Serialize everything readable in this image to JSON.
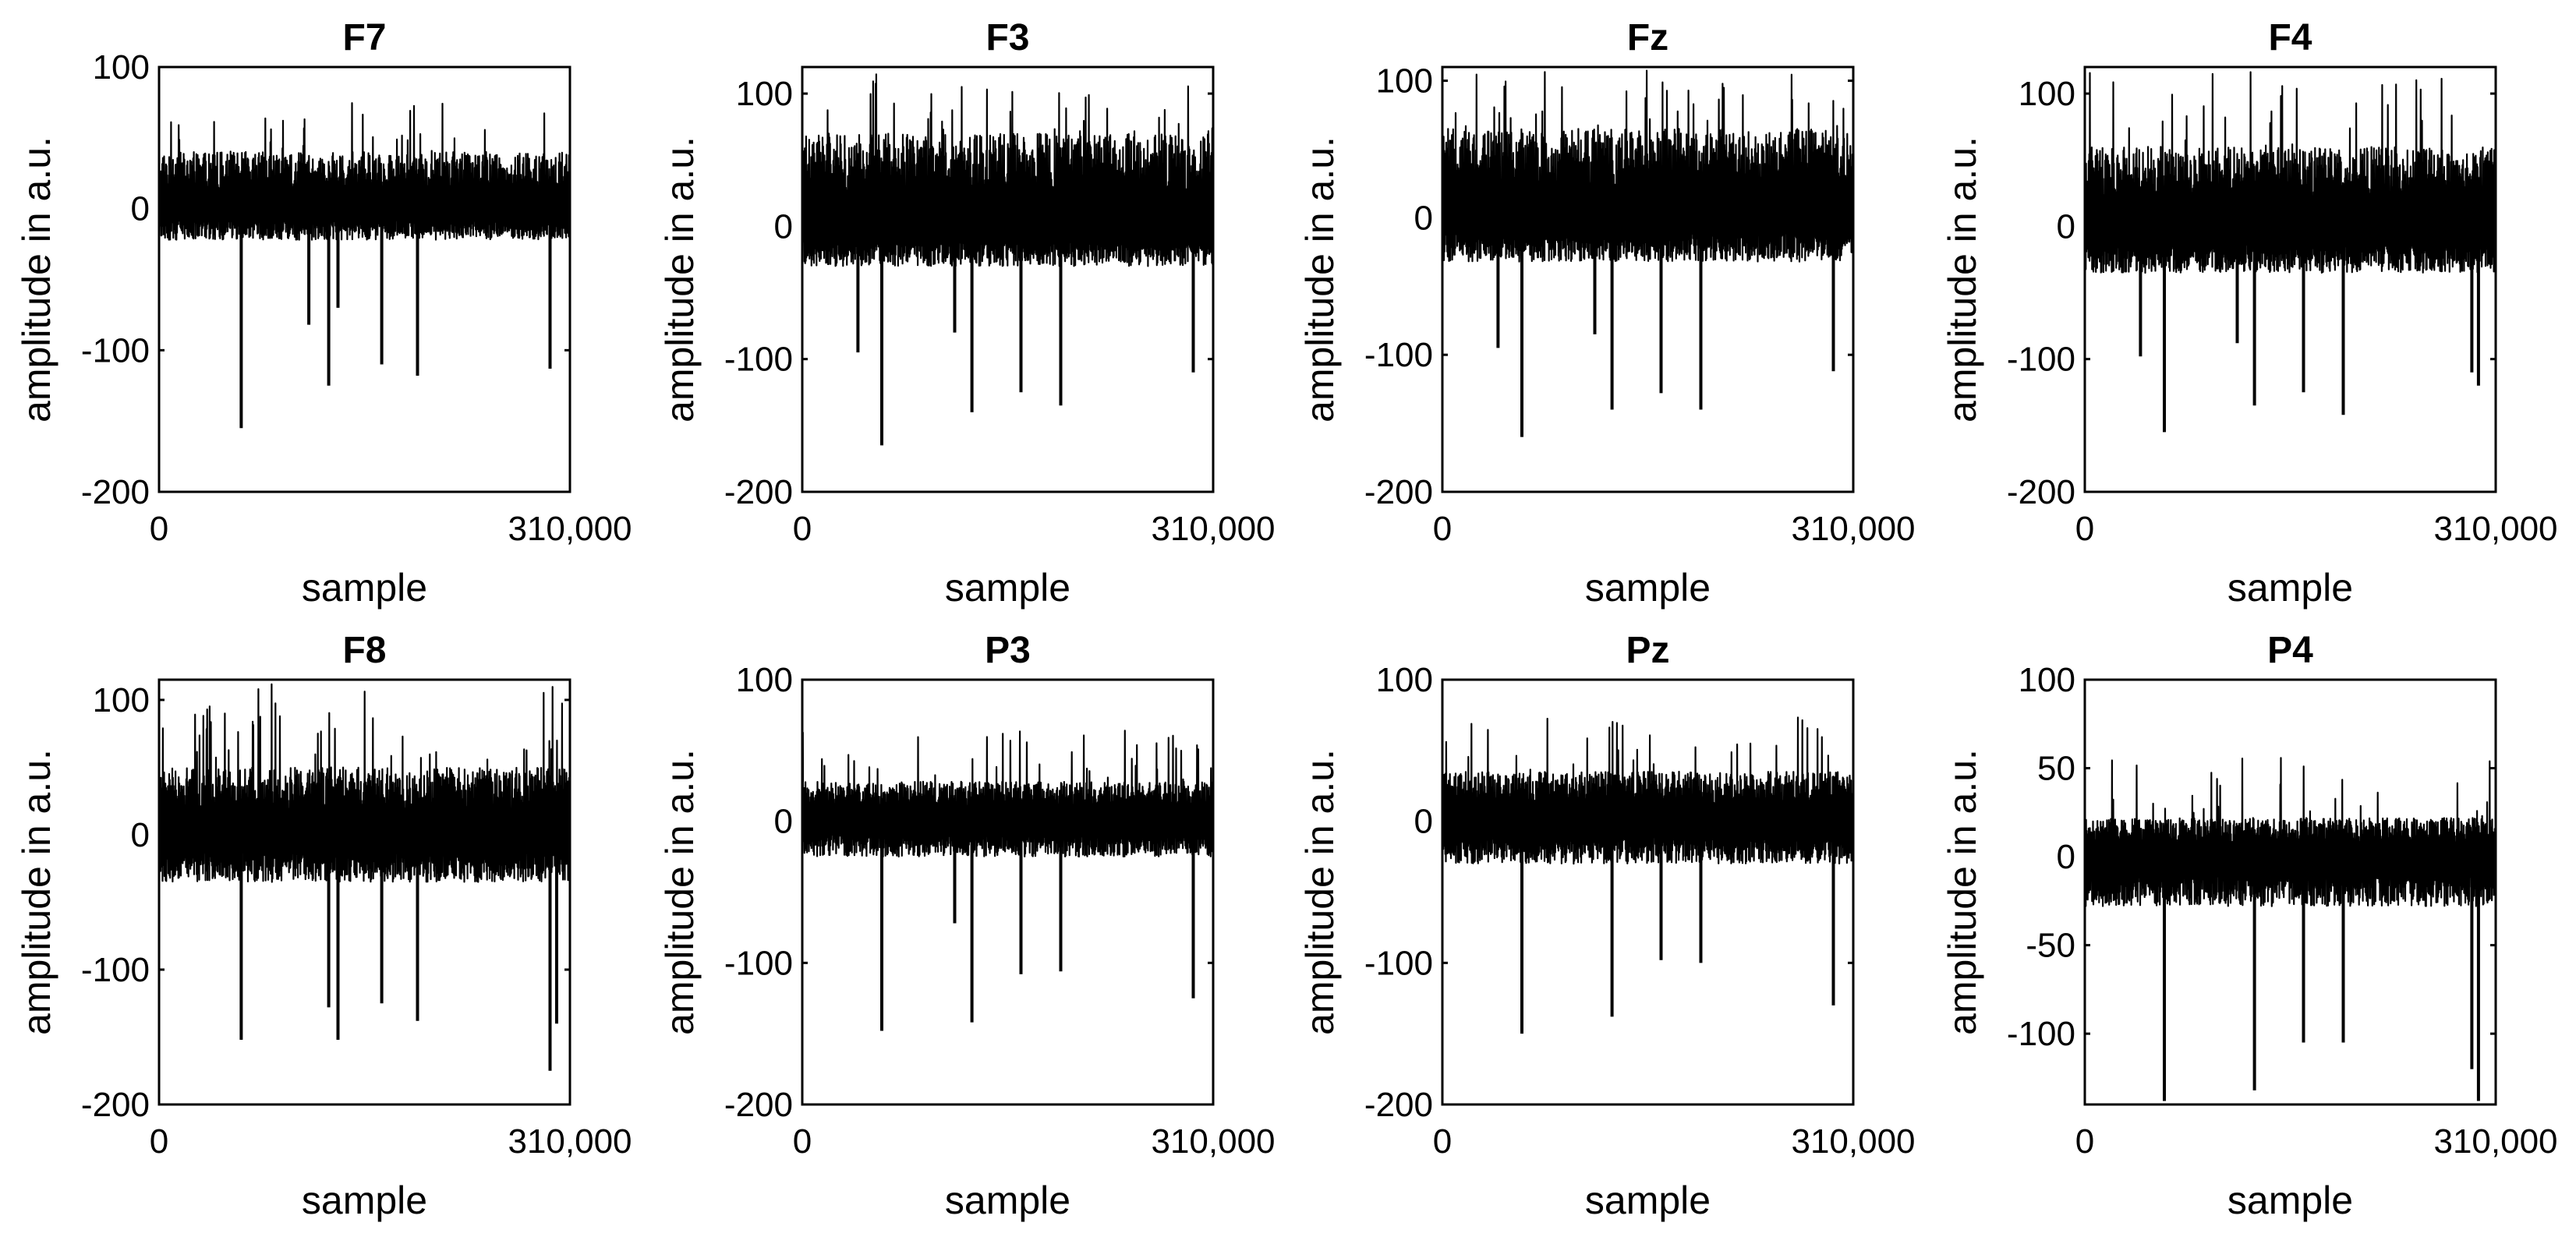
{
  "chart_data": [
    {
      "type": "line",
      "title": "F7",
      "xlabel": "sample",
      "ylabel": "amplitude in a.u.",
      "xlim": [
        0,
        310000
      ],
      "ylim": [
        -200,
        100
      ],
      "xticks": [
        0,
        310000
      ],
      "xtick_labels": [
        "0",
        "310,000"
      ],
      "yticks": [
        -200,
        -100,
        0,
        100
      ],
      "ytick_labels": [
        "-200",
        "-100",
        "0",
        "100"
      ],
      "noise": {
        "pos": 40,
        "neg": -22,
        "burst_pos": 75
      },
      "spikes": [
        {
          "x": 62000,
          "y": -155
        },
        {
          "x": 113000,
          "y": -82
        },
        {
          "x": 128000,
          "y": -125
        },
        {
          "x": 135000,
          "y": -70
        },
        {
          "x": 168000,
          "y": -110
        },
        {
          "x": 195000,
          "y": -118
        },
        {
          "x": 295000,
          "y": -113
        }
      ]
    },
    {
      "type": "line",
      "title": "F3",
      "xlabel": "sample",
      "ylabel": "amplitude in a.u.",
      "xlim": [
        0,
        310000
      ],
      "ylim": [
        -200,
        120
      ],
      "xticks": [
        0,
        310000
      ],
      "xtick_labels": [
        "0",
        "310,000"
      ],
      "yticks": [
        -200,
        -100,
        0,
        100
      ],
      "ytick_labels": [
        "-200",
        "-100",
        "0",
        "100"
      ],
      "noise": {
        "pos": 70,
        "neg": -30,
        "burst_pos": 115
      },
      "spikes": [
        {
          "x": 42000,
          "y": -95
        },
        {
          "x": 60000,
          "y": -165
        },
        {
          "x": 115000,
          "y": -80
        },
        {
          "x": 128000,
          "y": -140
        },
        {
          "x": 165000,
          "y": -125
        },
        {
          "x": 195000,
          "y": -135
        },
        {
          "x": 295000,
          "y": -110
        }
      ]
    },
    {
      "type": "line",
      "title": "Fz",
      "xlabel": "sample",
      "ylabel": "amplitude in a.u.",
      "xlim": [
        0,
        310000
      ],
      "ylim": [
        -200,
        110
      ],
      "xticks": [
        0,
        310000
      ],
      "xtick_labels": [
        "0",
        "310,000"
      ],
      "yticks": [
        -200,
        -100,
        0,
        100
      ],
      "ytick_labels": [
        "-200",
        "-100",
        "0",
        "100"
      ],
      "noise": {
        "pos": 65,
        "neg": -32,
        "burst_pos": 110
      },
      "spikes": [
        {
          "x": 42000,
          "y": -95
        },
        {
          "x": 60000,
          "y": -160
        },
        {
          "x": 115000,
          "y": -85
        },
        {
          "x": 128000,
          "y": -140
        },
        {
          "x": 165000,
          "y": -128
        },
        {
          "x": 195000,
          "y": -140
        },
        {
          "x": 295000,
          "y": -112
        }
      ]
    },
    {
      "type": "line",
      "title": "F4",
      "xlabel": "sample",
      "ylabel": "amplitude in a.u.",
      "xlim": [
        0,
        310000
      ],
      "ylim": [
        -200,
        120
      ],
      "xticks": [
        0,
        310000
      ],
      "xtick_labels": [
        "0",
        "310,000"
      ],
      "yticks": [
        -200,
        -100,
        0,
        100
      ],
      "ytick_labels": [
        "-200",
        "-100",
        "0",
        "100"
      ],
      "noise": {
        "pos": 60,
        "neg": -35,
        "burst_pos": 118
      },
      "spikes": [
        {
          "x": 42000,
          "y": -98
        },
        {
          "x": 60000,
          "y": -155
        },
        {
          "x": 115000,
          "y": -88
        },
        {
          "x": 128000,
          "y": -135
        },
        {
          "x": 165000,
          "y": -125
        },
        {
          "x": 195000,
          "y": -142
        },
        {
          "x": 292000,
          "y": -110
        },
        {
          "x": 297000,
          "y": -120
        }
      ]
    },
    {
      "type": "line",
      "title": "F8",
      "xlabel": "sample",
      "ylabel": "amplitude in a.u.",
      "xlim": [
        0,
        310000
      ],
      "ylim": [
        -200,
        115
      ],
      "xticks": [
        0,
        310000
      ],
      "xtick_labels": [
        "0",
        "310,000"
      ],
      "yticks": [
        -200,
        -100,
        0,
        100
      ],
      "ytick_labels": [
        "-200",
        "-100",
        "0",
        "100"
      ],
      "noise": {
        "pos": 50,
        "neg": -35,
        "burst_pos": 112
      },
      "spikes": [
        {
          "x": 62000,
          "y": -152
        },
        {
          "x": 128000,
          "y": -128
        },
        {
          "x": 135000,
          "y": -152
        },
        {
          "x": 168000,
          "y": -125
        },
        {
          "x": 195000,
          "y": -138
        },
        {
          "x": 295000,
          "y": -175
        },
        {
          "x": 300000,
          "y": -140
        }
      ]
    },
    {
      "type": "line",
      "title": "P3",
      "xlabel": "sample",
      "ylabel": "amplitude in a.u.",
      "xlim": [
        0,
        310000
      ],
      "ylim": [
        -200,
        100
      ],
      "xticks": [
        0,
        310000
      ],
      "xtick_labels": [
        "0",
        "310,000"
      ],
      "yticks": [
        -200,
        -100,
        0,
        100
      ],
      "ytick_labels": [
        "-200",
        "-100",
        "0",
        "100"
      ],
      "noise": {
        "pos": 28,
        "neg": -25,
        "burst_pos": 65
      },
      "spikes": [
        {
          "x": 60000,
          "y": -148
        },
        {
          "x": 115000,
          "y": -72
        },
        {
          "x": 128000,
          "y": -142
        },
        {
          "x": 165000,
          "y": -108
        },
        {
          "x": 195000,
          "y": -106
        },
        {
          "x": 295000,
          "y": -125
        }
      ]
    },
    {
      "type": "line",
      "title": "Pz",
      "xlabel": "sample",
      "ylabel": "amplitude in a.u.",
      "xlim": [
        0,
        310000
      ],
      "ylim": [
        -200,
        100
      ],
      "xticks": [
        0,
        310000
      ],
      "xtick_labels": [
        "0",
        "310,000"
      ],
      "yticks": [
        -200,
        -100,
        0,
        100
      ],
      "ytick_labels": [
        "-200",
        "-100",
        "0",
        "100"
      ],
      "noise": {
        "pos": 35,
        "neg": -30,
        "burst_pos": 74
      },
      "spikes": [
        {
          "x": 60000,
          "y": -150
        },
        {
          "x": 128000,
          "y": -138
        },
        {
          "x": 165000,
          "y": -98
        },
        {
          "x": 195000,
          "y": -100
        },
        {
          "x": 295000,
          "y": -130
        }
      ]
    },
    {
      "type": "line",
      "title": "P4",
      "xlabel": "sample",
      "ylabel": "amplitude in a.u.",
      "xlim": [
        0,
        310000
      ],
      "ylim": [
        -140,
        100
      ],
      "xticks": [
        0,
        310000
      ],
      "xtick_labels": [
        "0",
        "310,000"
      ],
      "yticks": [
        -100,
        -50,
        0,
        50,
        100
      ],
      "ytick_labels": [
        "-100",
        "-50",
        "0",
        "50",
        "100"
      ],
      "noise": {
        "pos": 22,
        "neg": -28,
        "burst_pos": 57
      },
      "spikes": [
        {
          "x": 60000,
          "y": -138
        },
        {
          "x": 128000,
          "y": -132
        },
        {
          "x": 165000,
          "y": -105
        },
        {
          "x": 195000,
          "y": -105
        },
        {
          "x": 292000,
          "y": -120
        },
        {
          "x": 297000,
          "y": -138
        }
      ]
    }
  ]
}
